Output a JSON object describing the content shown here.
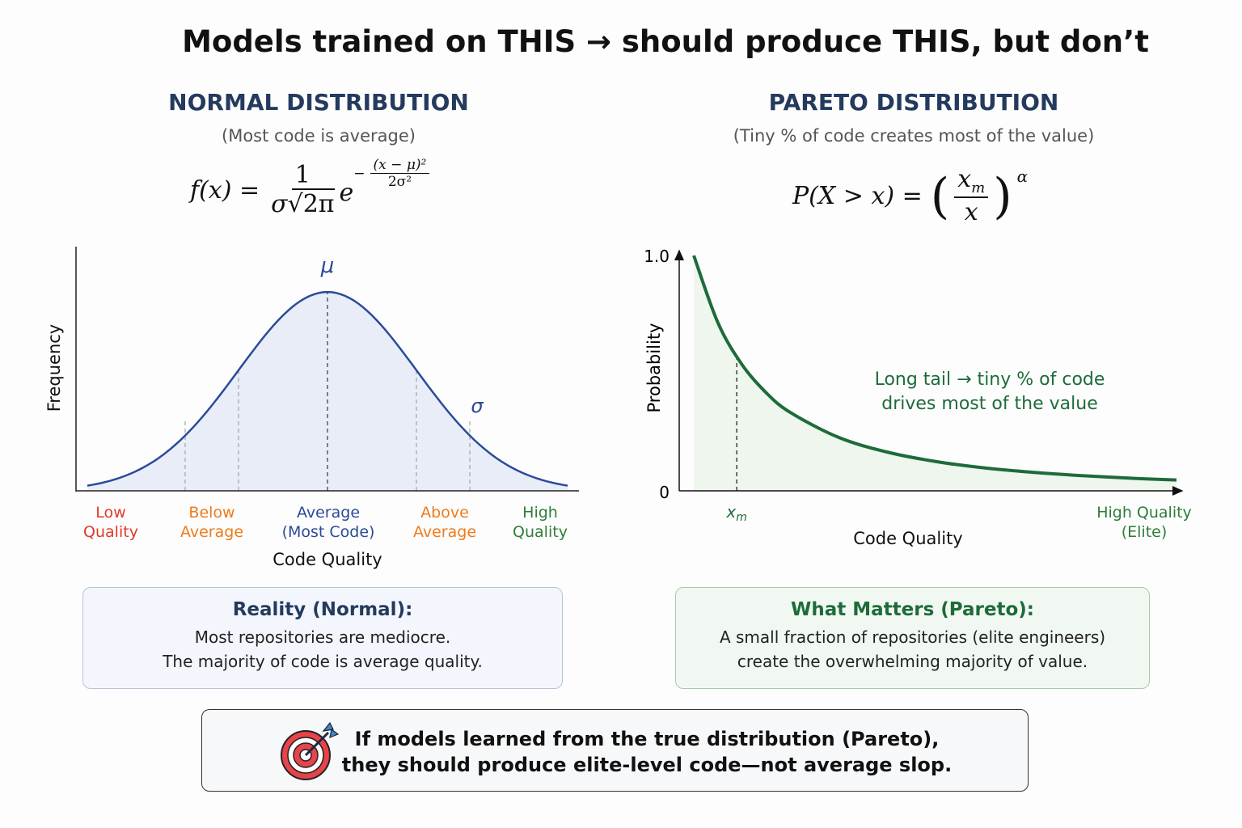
{
  "title": "Models trained on THIS → should produce THIS, but don’t",
  "colors": {
    "normal": "#2b4a9a",
    "normal_fill": "#e6ebf6",
    "pareto": "#1e6b3a",
    "pareto_fill": "#eef6ee",
    "low": "#e03a2a",
    "below": "#ef7a1a",
    "high": "#2e7d3a",
    "heading": "#243a5e"
  },
  "normal": {
    "heading": "NORMAL DISTRIBUTION",
    "subtitle": "(Most code is average)",
    "formula": {
      "lhs": "f(x) =",
      "num": "1",
      "den_sigma": "σ",
      "den_root": "2π",
      "e": "e",
      "exp_minus": "−",
      "exp_num": "(x − μ)²",
      "exp_den": "2σ²"
    },
    "mu_label": "μ",
    "sigma_label": "σ",
    "categories": [
      {
        "line1": "Low",
        "line2": "Quality"
      },
      {
        "line1": "Below",
        "line2": "Average"
      },
      {
        "line1": "Average",
        "line2": "(Most Code)"
      },
      {
        "line1": "Above",
        "line2": "Average"
      },
      {
        "line1": "High",
        "line2": "Quality"
      }
    ],
    "box": {
      "title": "Reality (Normal):",
      "line1": "Most repositories are mediocre.",
      "line2": "The majority of code is average quality."
    }
  },
  "pareto": {
    "heading": "PARETO DISTRIBUTION",
    "subtitle": "(Tiny % of code creates most of the value)",
    "formula": {
      "lhs": "P(X > x) =",
      "num": "x",
      "num_sub": "m",
      "den": "x",
      "alpha": "α"
    },
    "annotation_line1": "Long tail → tiny % of code",
    "annotation_line2": "drives most of the value",
    "xm_label": "x",
    "xm_sub": "m",
    "high_label_1": "High Quality",
    "high_label_2": "(Elite)",
    "box": {
      "title": "What Matters (Pareto):",
      "line1": "A small fraction of repositories (elite engineers)",
      "line2": "create the overwhelming majority of value."
    }
  },
  "footer": {
    "icon": "target-icon",
    "line1": "If models learned from the true distribution (Pareto),",
    "line2": "they should produce elite-level code—not average slop."
  },
  "chart_data": [
    {
      "type": "area",
      "function": "normal",
      "mu": 0,
      "sigma": 1,
      "xlim": [
        -2.7,
        2.7
      ],
      "ylim": [
        0,
        0.49
      ],
      "markers": [
        -1.6,
        -1,
        0,
        1,
        1.6
      ],
      "xlabel": "Code Quality",
      "ylabel": "Frequency",
      "grid": false
    },
    {
      "type": "area",
      "function": "pareto",
      "x": [
        0,
        0.5,
        1,
        1.5,
        2,
        3,
        4,
        5,
        6,
        7,
        8,
        9,
        10
      ],
      "values": [
        1.0,
        0.714,
        0.536,
        0.417,
        0.333,
        0.227,
        0.165,
        0.125,
        0.098,
        0.079,
        0.065,
        0.054,
        0.046
      ],
      "xm": 0.89,
      "xlim": [
        -0.3,
        10.1
      ],
      "ylim": [
        0,
        1.0
      ],
      "yticks": [
        "0",
        "1.0"
      ],
      "xlabel": "Code Quality",
      "ylabel": "Probability",
      "grid": false
    }
  ]
}
